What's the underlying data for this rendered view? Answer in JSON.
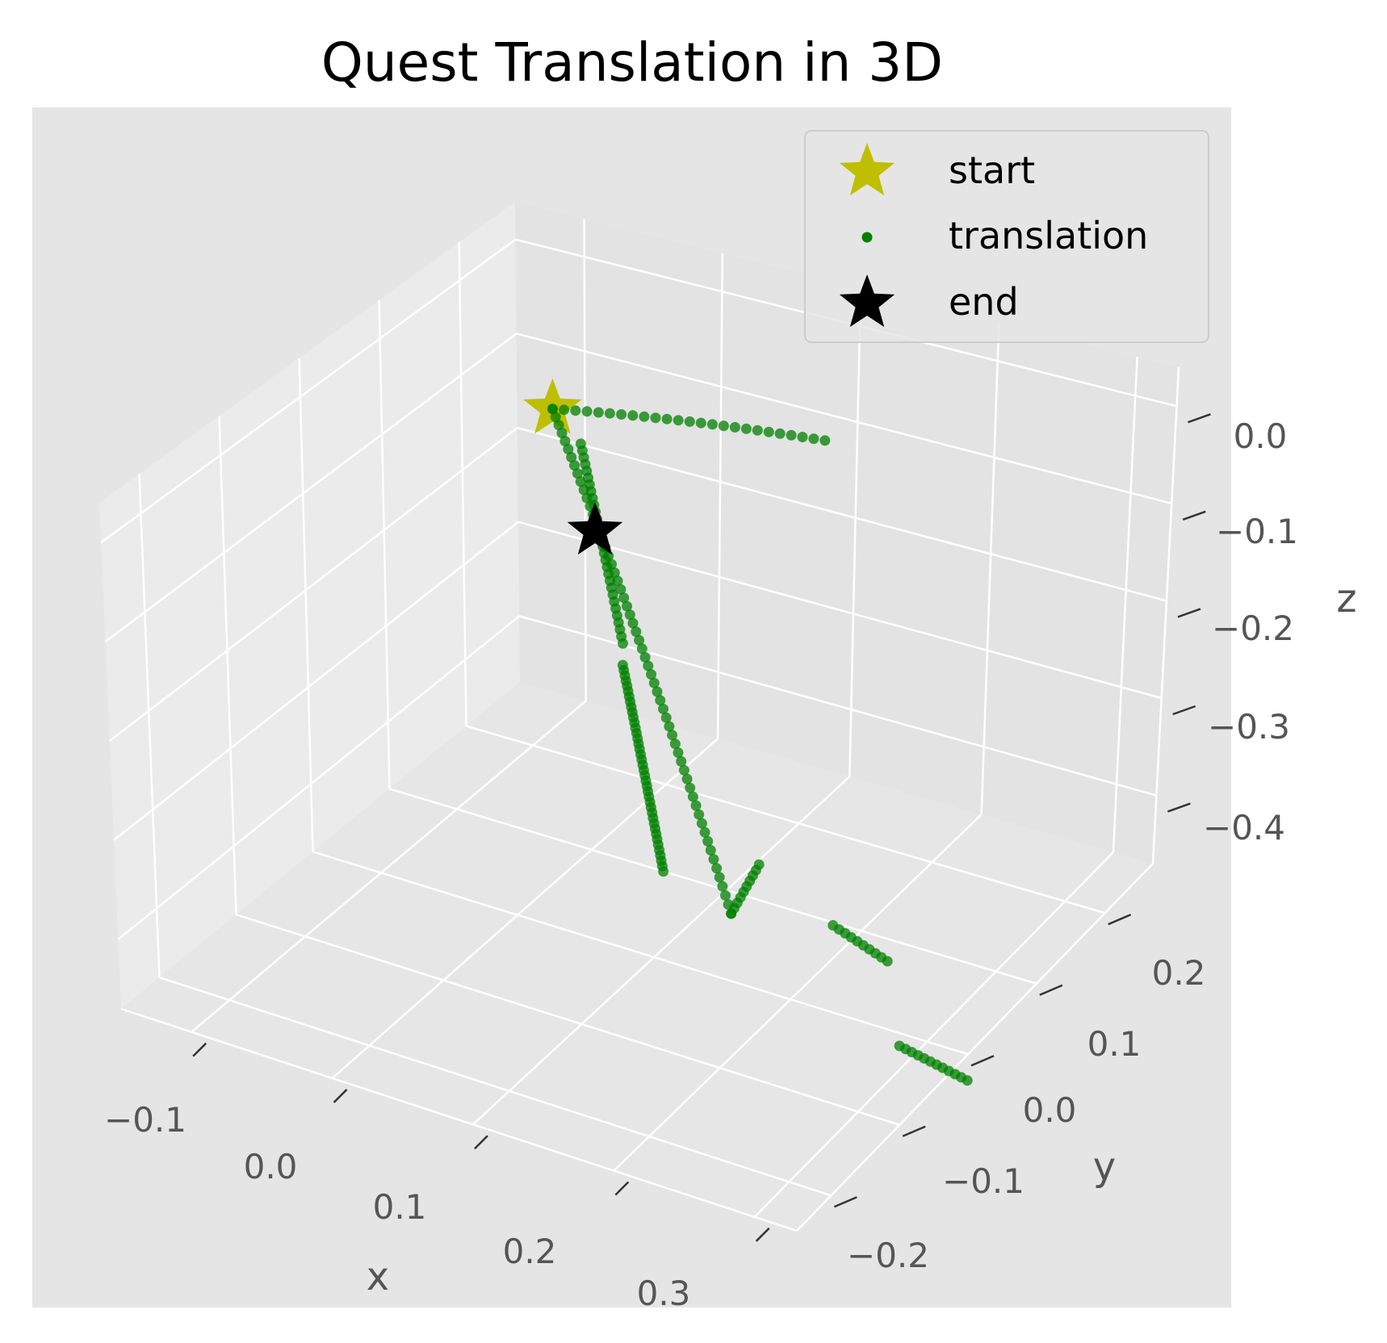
{
  "chart_data": {
    "type": "scatter",
    "projection": "3d",
    "title": "Quest Translation in 3D",
    "xlabel": "x",
    "ylabel": "y",
    "zlabel": "z",
    "xlim": [
      -0.15,
      0.33
    ],
    "ylim": [
      -0.25,
      0.27
    ],
    "zlim": [
      -0.47,
      0.04
    ],
    "xticks": [
      "−0.1",
      "0.0",
      "0.1",
      "0.2",
      "0.3"
    ],
    "yticks": [
      "−0.2",
      "−0.1",
      "0.0",
      "0.1",
      "0.2"
    ],
    "zticks": [
      "0.0",
      "−0.1",
      "−0.2",
      "−0.3",
      "−0.4"
    ],
    "grid": true,
    "legend_position": "top-right",
    "series": [
      {
        "name": "start",
        "marker": "star",
        "color": "#bfbf00",
        "points": [
          [
            0.0,
            0.05,
            -0.02
          ]
        ]
      },
      {
        "name": "translation",
        "marker": "dot",
        "color": "#008000",
        "segments": [
          {
            "from": [
              0.0,
              0.05,
              -0.02
            ],
            "to": [
              0.13,
              0.17,
              -0.07
            ],
            "n": 25
          },
          {
            "from": [
              0.0,
              0.05,
              -0.02
            ],
            "to": [
              0.13,
              0.05,
              -0.45
            ],
            "n": 60
          },
          {
            "from": [
              0.02,
              0.05,
              -0.05
            ],
            "to": [
              0.05,
              0.05,
              -0.23
            ],
            "n": 30
          },
          {
            "from": [
              0.05,
              0.05,
              -0.25
            ],
            "to": [
              0.08,
              0.05,
              -0.43
            ],
            "n": 40
          },
          {
            "from": [
              0.13,
              0.05,
              -0.45
            ],
            "to": [
              0.15,
              0.05,
              -0.4
            ],
            "n": 10
          },
          {
            "from": [
              0.23,
              0.0,
              -0.4
            ],
            "to": [
              0.26,
              0.02,
              -0.43
            ],
            "n": 10
          },
          {
            "from": [
              0.28,
              0.0,
              -0.48
            ],
            "to": [
              0.33,
              0.0,
              -0.49
            ],
            "n": 12
          }
        ]
      },
      {
        "name": "end",
        "marker": "star",
        "color": "#000000",
        "points": [
          [
            0.03,
            0.05,
            -0.13
          ]
        ]
      }
    ]
  }
}
